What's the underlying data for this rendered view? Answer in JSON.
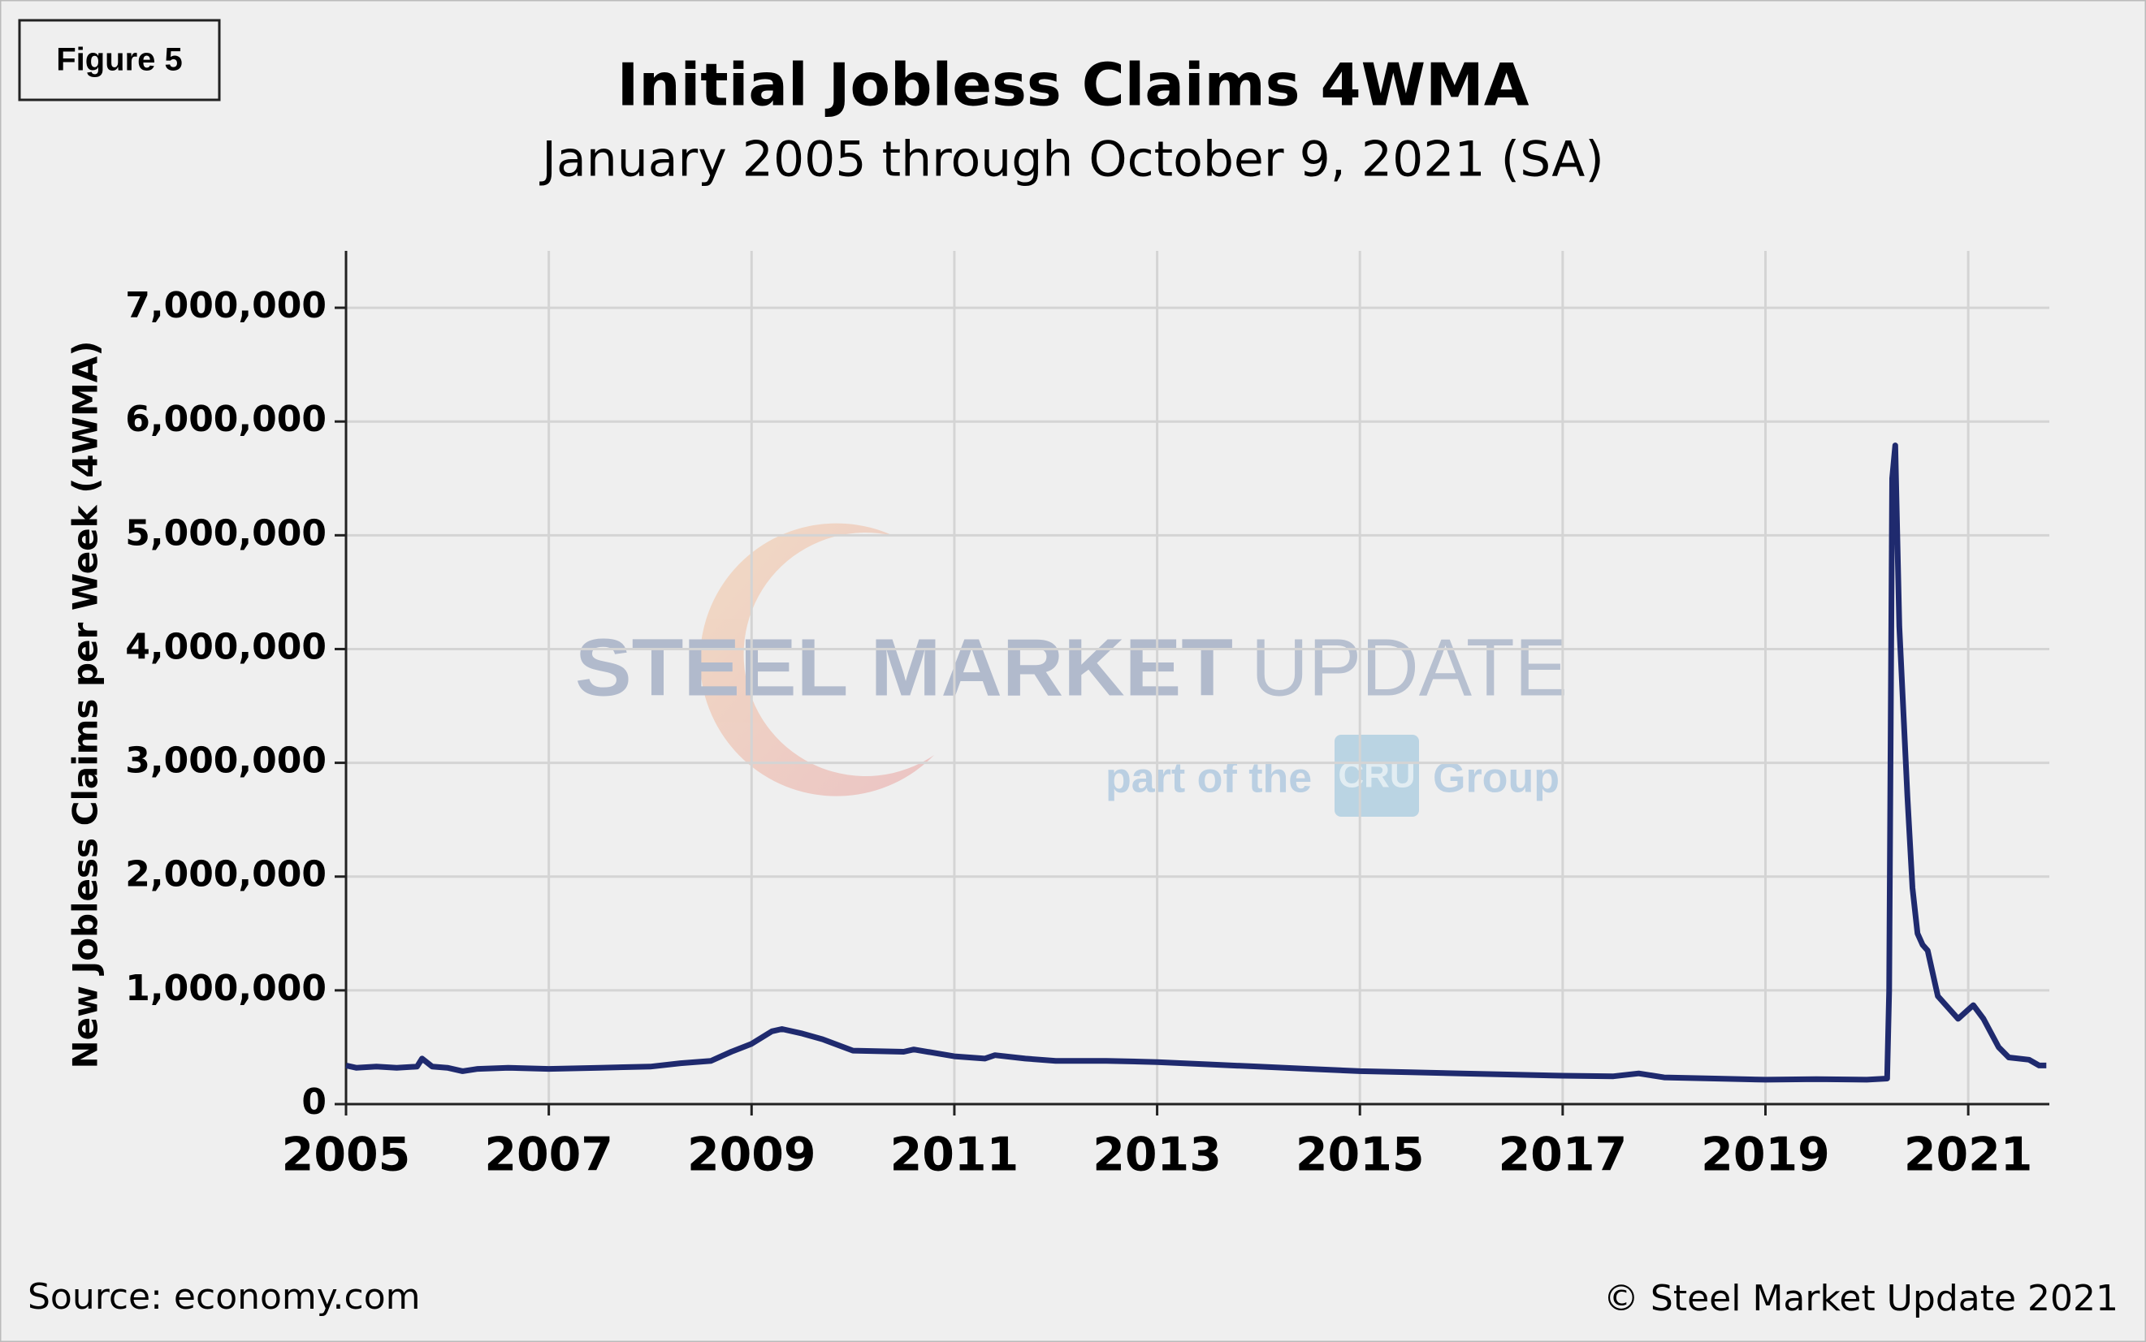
{
  "figure_label": "Figure 5",
  "chart_data": {
    "type": "line",
    "title": "Initial Jobless Claims 4WMA",
    "subtitle": "January 2005 through October 9, 2021 (SA)",
    "y_label": "New Jobless Claims per Week (4WMA)",
    "x": [
      2005.0,
      2005.1,
      2005.3,
      2005.5,
      2005.7,
      2005.75,
      2005.85,
      2006.0,
      2006.15,
      2006.3,
      2006.6,
      2007.0,
      2007.5,
      2008.0,
      2008.3,
      2008.6,
      2008.8,
      2009.0,
      2009.2,
      2009.3,
      2009.5,
      2009.7,
      2010.0,
      2010.5,
      2010.6,
      2011.0,
      2011.3,
      2011.4,
      2011.7,
      2012.0,
      2012.5,
      2013.0,
      2013.5,
      2014.0,
      2014.5,
      2015.0,
      2015.5,
      2016.0,
      2016.5,
      2017.0,
      2017.5,
      2017.75,
      2018.0,
      2018.5,
      2019.0,
      2019.5,
      2020.0,
      2020.2,
      2020.22,
      2020.25,
      2020.28,
      2020.32,
      2020.4,
      2020.45,
      2020.5,
      2020.55,
      2020.6,
      2020.7,
      2020.8,
      2020.9,
      2021.0,
      2021.05,
      2021.15,
      2021.3,
      2021.4,
      2021.6,
      2021.7,
      2021.77
    ],
    "series": [
      {
        "name": "Initial Jobless Claims 4WMA",
        "color": "#1f2a6e",
        "values": [
          340000,
          320000,
          330000,
          320000,
          330000,
          400000,
          330000,
          320000,
          290000,
          310000,
          320000,
          310000,
          320000,
          330000,
          360000,
          380000,
          460000,
          530000,
          640000,
          660000,
          620000,
          570000,
          470000,
          460000,
          480000,
          420000,
          400000,
          430000,
          400000,
          380000,
          380000,
          370000,
          350000,
          330000,
          310000,
          290000,
          280000,
          270000,
          260000,
          250000,
          245000,
          270000,
          235000,
          225000,
          215000,
          220000,
          215000,
          225000,
          1000000,
          5500000,
          5790000,
          4200000,
          2700000,
          1900000,
          1500000,
          1400000,
          1350000,
          950000,
          850000,
          750000,
          830000,
          870000,
          750000,
          500000,
          410000,
          390000,
          340000,
          340000
        ]
      }
    ],
    "xlim": [
      2005,
      2021.8
    ],
    "xticks": [
      2005,
      2007,
      2009,
      2011,
      2013,
      2015,
      2017,
      2019,
      2021
    ],
    "ylim": [
      0,
      7500000
    ],
    "yticks": [
      0,
      {
        "value": 1000000,
        "label": "1,000,000"
      },
      {
        "value": 2000000,
        "label": "2,000,000"
      },
      {
        "value": 3000000,
        "label": "3,000,000"
      },
      {
        "value": 4000000,
        "label": "4,000,000"
      },
      {
        "value": 5000000,
        "label": "5,000,000"
      },
      {
        "value": 6000000,
        "label": "6,000,000"
      },
      {
        "value": 7000000,
        "label": "7,000,000"
      }
    ],
    "grid": true
  },
  "watermark": {
    "brand": "STEEL MARKET",
    "brand_light": "UPDATE",
    "part_of": "part of the",
    "cru": "CRU",
    "group": "Group"
  },
  "footer": {
    "source": "Source: economy.com",
    "copyright": "© Steel Market Update 2021"
  }
}
